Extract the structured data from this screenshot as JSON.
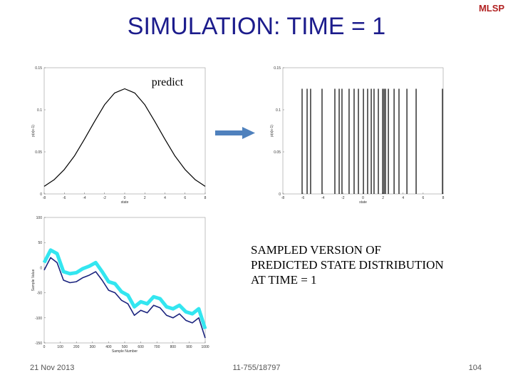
{
  "slide": {
    "title": "SIMULATION: TIME = 1",
    "logo": "MLSP",
    "arrow_label": "predict",
    "caption": [
      "SAMPLED VERSION OF",
      "PREDICTED STATE DISTRIBUTION",
      "AT TIME = 1"
    ],
    "footer": {
      "date": "21  Nov 2013",
      "course": "11-755/18797",
      "page": "104"
    }
  },
  "chart_data": [
    {
      "type": "line",
      "xlabel": "state",
      "ylabel": "p(x|x-1)",
      "x": [
        -8,
        -7,
        -6,
        -5,
        -4,
        -3,
        -2,
        -1,
        0,
        1,
        2,
        3,
        4,
        5,
        6,
        7,
        8
      ],
      "values": [
        0.009,
        0.017,
        0.029,
        0.045,
        0.065,
        0.086,
        0.106,
        0.12,
        0.125,
        0.12,
        0.106,
        0.086,
        0.065,
        0.045,
        0.029,
        0.017,
        0.009
      ],
      "color": "#000000",
      "xlim": [
        -8,
        8
      ],
      "xticks": [
        -8,
        -6,
        -4,
        -2,
        0,
        2,
        4,
        6,
        8
      ],
      "ylim": [
        0,
        0.15
      ],
      "yticks": [
        0,
        0.05,
        0.1,
        0.15
      ]
    },
    {
      "type": "stem",
      "xlabel": "state",
      "ylabel": "p(x|x-1)",
      "x": [
        -6.08,
        -5.58,
        -5.23,
        -4.09,
        -2.81,
        -2.38,
        -2.1,
        -1.39,
        -0.89,
        -0.46,
        0.04,
        0.46,
        0.82,
        1.1,
        1.53,
        1.96,
        2.1,
        2.24,
        2.53,
        3.1,
        3.59,
        4.38,
        5.3,
        7.93
      ],
      "values": [
        0.125,
        0.125,
        0.125,
        0.125,
        0.125,
        0.125,
        0.125,
        0.125,
        0.125,
        0.125,
        0.125,
        0.125,
        0.125,
        0.125,
        0.125,
        0.125,
        0.125,
        0.125,
        0.125,
        0.125,
        0.125,
        0.125,
        0.125,
        0.125
      ],
      "color": "#000000",
      "xlim": [
        -8,
        8
      ],
      "xticks": [
        -8,
        -6,
        -4,
        -2,
        0,
        2,
        4,
        6,
        8
      ],
      "ylim": [
        0,
        0.15
      ],
      "yticks": [
        0,
        0.05,
        0.1,
        0.15
      ]
    },
    {
      "type": "line",
      "xlabel": "Sample Number",
      "ylabel": "Sample Value",
      "x": [
        0,
        40,
        80,
        120,
        160,
        200,
        240,
        280,
        320,
        360,
        400,
        440,
        480,
        520,
        560,
        600,
        640,
        680,
        720,
        760,
        800,
        840,
        880,
        920,
        960,
        1000
      ],
      "series": [
        {
          "color": "#33e6f0",
          "values": [
            10,
            35,
            28,
            -8,
            -12,
            -10,
            -2,
            3,
            10,
            -8,
            -28,
            -32,
            -48,
            -55,
            -78,
            -68,
            -72,
            -58,
            -62,
            -78,
            -82,
            -75,
            -88,
            -92,
            -82,
            -122
          ]
        },
        {
          "color": "#1a237e",
          "values": [
            -5,
            20,
            10,
            -25,
            -30,
            -28,
            -20,
            -15,
            -8,
            -25,
            -45,
            -50,
            -65,
            -72,
            -95,
            -85,
            -90,
            -75,
            -80,
            -95,
            -100,
            -92,
            -105,
            -110,
            -100,
            -140
          ]
        }
      ],
      "xlim": [
        0,
        1000
      ],
      "xticks": [
        0,
        100,
        200,
        300,
        400,
        500,
        600,
        700,
        800,
        900,
        1000
      ],
      "ylim": [
        -150,
        100
      ],
      "yticks": [
        -150,
        -100,
        -50,
        0,
        50,
        100
      ]
    }
  ]
}
